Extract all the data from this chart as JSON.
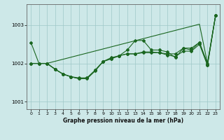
{
  "xlabel": "Graphe pression niveau de la mer (hPa)",
  "xlim": [
    -0.5,
    23.5
  ],
  "ylim": [
    1000.8,
    1003.55
  ],
  "yticks": [
    1001,
    1002,
    1003
  ],
  "xticks": [
    0,
    1,
    2,
    3,
    4,
    5,
    6,
    7,
    8,
    9,
    10,
    11,
    12,
    13,
    14,
    15,
    16,
    17,
    18,
    19,
    20,
    21,
    22,
    23
  ],
  "background_color": "#cde8e8",
  "grid_color": "#9ec8c8",
  "line_color": "#1a6620",
  "high_env": [
    1002.0,
    1002.0,
    1002.0,
    1002.054,
    1002.108,
    1002.162,
    1002.216,
    1002.27,
    1002.324,
    1002.378,
    1002.432,
    1002.486,
    1002.54,
    1002.594,
    1002.648,
    1002.702,
    1002.756,
    1002.81,
    1002.864,
    1002.918,
    1002.972,
    1003.026,
    1002.0,
    1003.25
  ],
  "low_line": [
    1002.55,
    1002.0,
    1002.0,
    1001.85,
    1001.72,
    1001.65,
    1001.6,
    1001.6,
    1001.8,
    1002.05,
    1002.12,
    1002.2,
    1002.25,
    1002.25,
    1002.28,
    1002.28,
    1002.28,
    1002.22,
    1002.18,
    1002.32,
    1002.32,
    1002.5,
    1001.95,
    1003.25
  ],
  "mid1": [
    1002.0,
    1002.0,
    1002.0,
    1001.85,
    1001.72,
    1001.65,
    1001.6,
    1001.62,
    1001.82,
    1002.05,
    1002.15,
    1002.2,
    1002.35,
    1002.6,
    1002.6,
    1002.35,
    1002.35,
    1002.3,
    1002.15,
    1002.4,
    1002.35,
    1002.55,
    1001.95,
    1003.25
  ],
  "mid2": [
    1002.0,
    1002.0,
    1002.0,
    1001.85,
    1001.72,
    1001.65,
    1001.62,
    1001.62,
    1001.82,
    1002.05,
    1002.12,
    1002.2,
    1002.25,
    1002.25,
    1002.3,
    1002.3,
    1002.28,
    1002.25,
    1002.25,
    1002.4,
    1002.4,
    1002.55,
    1002.0,
    1003.25
  ]
}
